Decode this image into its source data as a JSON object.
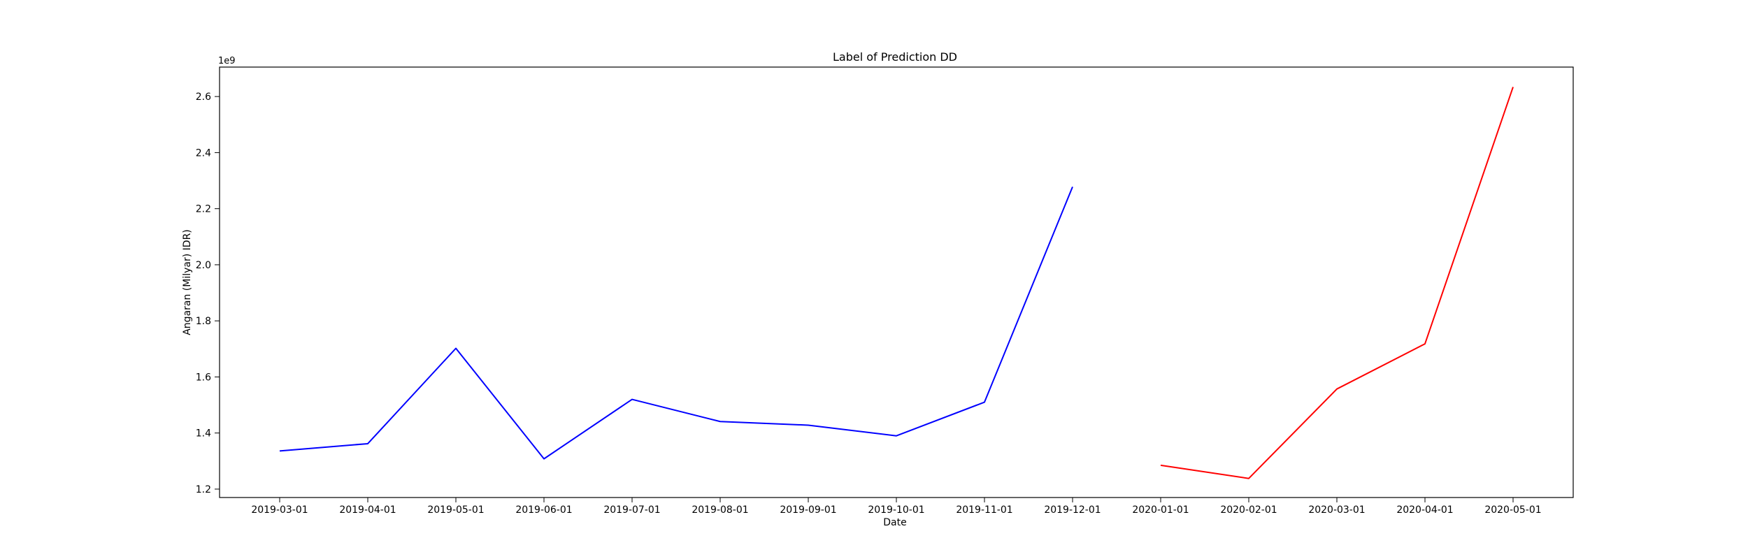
{
  "chart_data": {
    "type": "line",
    "title": "Label of Prediction DD",
    "xlabel": "Date",
    "ylabel": "Angaran (Milyar) IDR)",
    "y_offset_label": "1e9",
    "ylim": [
      1.17,
      2.705
    ],
    "y_ticks": [
      1.2,
      1.4,
      1.6,
      1.8,
      2.0,
      2.2,
      2.4,
      2.6
    ],
    "y_tick_labels": [
      "1.2",
      "1.4",
      "1.6",
      "1.8",
      "2.0",
      "2.2",
      "2.4",
      "2.6"
    ],
    "x_ticks": [
      "2019-03-01",
      "2019-04-01",
      "2019-05-01",
      "2019-06-01",
      "2019-07-01",
      "2019-08-01",
      "2019-09-01",
      "2019-10-01",
      "2019-11-01",
      "2019-12-01",
      "2020-01-01",
      "2020-02-01",
      "2020-03-01",
      "2020-04-01",
      "2020-05-01"
    ],
    "grid": false,
    "series": [
      {
        "color": "#0000ff",
        "x": [
          "2019-03-01",
          "2019-04-01",
          "2019-05-01",
          "2019-06-01",
          "2019-07-01",
          "2019-08-01",
          "2019-09-01",
          "2019-10-01",
          "2019-11-01",
          "2019-12-01"
        ],
        "values": [
          1.336,
          1.362,
          1.702,
          1.308,
          1.52,
          1.441,
          1.428,
          1.39,
          1.51,
          2.278
        ]
      },
      {
        "color": "#ff0000",
        "x": [
          "2020-01-01",
          "2020-02-01",
          "2020-03-01",
          "2020-04-01",
          "2020-05-01"
        ],
        "values": [
          1.285,
          1.238,
          1.557,
          1.718,
          2.634
        ]
      }
    ]
  }
}
